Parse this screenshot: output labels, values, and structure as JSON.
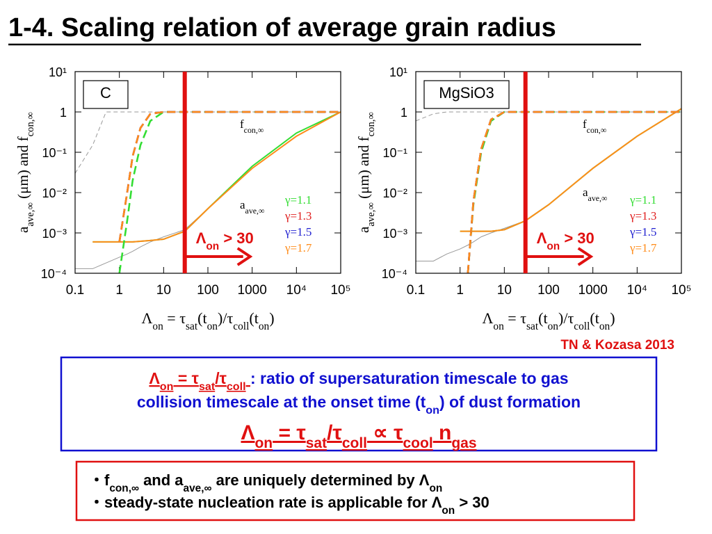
{
  "title": "1-4. Scaling relation of average grain radius",
  "citation": "TN & Kozasa 2013",
  "definition": {
    "formula": [
      "Λ",
      "on",
      " = τ",
      "sat",
      "/τ",
      "coll",
      " "
    ],
    "text": [
      " : ratio of supersaturation timescale to gas"
    ],
    "line2": [
      "collision timescale at the onset time (t",
      "on",
      ") of dust formation"
    ],
    "relation": [
      "Λ",
      "on",
      " = τ",
      "sat",
      "/τ",
      "coll",
      " ∝ τ",
      "cool",
      " n",
      "gas"
    ]
  },
  "notes": [
    [
      "・f",
      "con,∞",
      " and a",
      "ave,∞",
      " are uniquely determined by Λ",
      "on"
    ],
    [
      "・steady-state nucleation rate is applicable for Λ",
      "on",
      " > 30"
    ]
  ],
  "chart_data": [
    {
      "type": "line",
      "log_x": true,
      "log_y": true,
      "label": "C",
      "ylabel": [
        "a",
        "ave,∞",
        " (μm)  and  f",
        "con,∞"
      ],
      "xlabel": [
        "Λ",
        "on",
        "  =  τ",
        "sat",
        "(t",
        "on",
        ")/τ",
        "coll",
        "(t",
        "on",
        ")"
      ],
      "xlim": [
        0.1,
        100000
      ],
      "ylim": [
        0.0001,
        10
      ],
      "xticks": [
        0.1,
        1,
        10,
        100,
        1000,
        {
          "value": 10000,
          "label": "10⁴"
        },
        {
          "value": 100000,
          "label": "10⁵"
        }
      ],
      "yticks": [
        {
          "value": 0.0001,
          "label": "10⁻⁴"
        },
        {
          "value": 0.001,
          "label": "10⁻³"
        },
        {
          "value": 0.01,
          "label": "10⁻²"
        },
        {
          "value": 0.1,
          "label": "10⁻¹"
        },
        1,
        {
          "value": 10,
          "label": "10¹"
        }
      ],
      "x": [
        0.1,
        0.25,
        0.5,
        1,
        1.5,
        2,
        3,
        5,
        10,
        30,
        100,
        1000,
        10000,
        100000
      ],
      "series": [
        {
          "color": "#999999",
          "dash": true,
          "values": [
            0.03,
            0.15,
            1,
            1,
            1,
            1,
            1,
            1,
            1,
            1,
            1,
            1,
            1,
            1
          ]
        },
        {
          "color": "#999999",
          "values": [
            0.00013,
            0.00013,
            0.00018,
            0.00025,
            0.0003,
            0.00035,
            0.00045,
            0.0006,
            0.0008,
            0.0012,
            0.004,
            0.04,
            0.25,
            1
          ]
        },
        {
          "color": "#33dd33",
          "values": [
            null,
            0.0006,
            0.0006,
            0.0006,
            0.0006,
            0.0006,
            0.00062,
            0.00065,
            0.0007,
            0.0011,
            0.004,
            0.045,
            0.3,
            1
          ]
        },
        {
          "color": "#ff8c1a",
          "values": [
            null,
            0.0006,
            0.0006,
            0.0006,
            0.0006,
            0.0006,
            0.00062,
            0.00065,
            0.0007,
            0.0011,
            0.004,
            0.04,
            0.25,
            1
          ]
        },
        {
          "name": "γ=1.1",
          "color": "#33dd33",
          "dash": true,
          "values": [
            null,
            null,
            null,
            0.0001,
            0.002,
            0.02,
            0.15,
            0.6,
            1,
            1,
            1,
            1,
            1,
            1
          ]
        },
        {
          "name": "γ=1.3",
          "color": "#e02020",
          "dash": true,
          "values": [
            null,
            null,
            null,
            0.0006,
            0.01,
            0.08,
            0.4,
            0.9,
            1,
            1,
            1,
            1,
            1,
            1
          ]
        },
        {
          "name": "γ=1.5",
          "color": "#2020d0",
          "dash": true,
          "values": [
            null,
            null,
            null,
            0.0006,
            0.01,
            0.08,
            0.4,
            0.9,
            1,
            1,
            1,
            1,
            1,
            1
          ]
        },
        {
          "name": "γ=1.7",
          "color": "#ff8c1a",
          "dash": true,
          "values": [
            null,
            null,
            null,
            0.0006,
            0.01,
            0.08,
            0.4,
            0.9,
            1,
            1,
            1,
            1,
            1,
            1
          ]
        }
      ],
      "annotations": {
        "fcon": [
          "f",
          "con,∞"
        ],
        "aave": [
          "a",
          "ave,∞"
        ]
      },
      "threshold": {
        "x": 30,
        "text": [
          "Λ",
          "on",
          " > 30"
        ]
      }
    },
    {
      "type": "line",
      "log_x": true,
      "log_y": true,
      "label": "MgSiO3",
      "ylabel": [
        "a",
        "ave,∞",
        " (μm)  and  f",
        "con,∞"
      ],
      "xlabel": [
        "Λ",
        "on",
        "  =  τ",
        "sat",
        "(t",
        "on",
        ")/τ",
        "coll",
        "(t",
        "on",
        ")"
      ],
      "xlim": [
        0.1,
        100000
      ],
      "ylim": [
        0.0001,
        10
      ],
      "xticks": [
        0.1,
        1,
        10,
        100,
        1000,
        {
          "value": 10000,
          "label": "10⁴"
        },
        {
          "value": 100000,
          "label": "10⁵"
        }
      ],
      "yticks": [
        {
          "value": 0.0001,
          "label": "10⁻⁴"
        },
        {
          "value": 0.001,
          "label": "10⁻³"
        },
        {
          "value": 0.01,
          "label": "10⁻²"
        },
        {
          "value": 0.1,
          "label": "10⁻¹"
        },
        1,
        {
          "value": 10,
          "label": "10¹"
        }
      ],
      "x": [
        0.1,
        0.25,
        0.5,
        1,
        1.5,
        2,
        3,
        5,
        10,
        30,
        100,
        1000,
        10000,
        100000
      ],
      "series": [
        {
          "color": "#999999",
          "dash": true,
          "values": [
            0.6,
            0.9,
            1,
            1,
            1,
            1,
            1,
            1,
            1,
            1,
            1,
            1,
            1,
            1
          ]
        },
        {
          "color": "#999999",
          "values": [
            0.0002,
            0.0002,
            0.0003,
            0.0004,
            0.0005,
            0.0006,
            0.0008,
            0.001,
            0.0013,
            0.002,
            0.005,
            0.04,
            0.25,
            1.2
          ]
        },
        {
          "color": "#33dd33",
          "values": [
            null,
            null,
            null,
            0.0011,
            0.0011,
            0.0011,
            0.0011,
            0.0011,
            0.0012,
            0.002,
            0.005,
            0.04,
            0.25,
            1.2
          ]
        },
        {
          "color": "#ff8c1a",
          "values": [
            null,
            null,
            null,
            0.0011,
            0.0011,
            0.0011,
            0.0011,
            0.0011,
            0.0012,
            0.002,
            0.005,
            0.04,
            0.25,
            1.2
          ]
        },
        {
          "name": "γ=1.1",
          "color": "#33dd33",
          "dash": true,
          "values": [
            null,
            null,
            null,
            null,
            0.0001,
            0.005,
            0.1,
            0.6,
            1,
            1,
            1,
            1,
            1,
            1
          ]
        },
        {
          "name": "γ=1.3",
          "color": "#e02020",
          "dash": true,
          "values": [
            null,
            null,
            null,
            null,
            0.0001,
            0.006,
            0.12,
            0.65,
            1,
            1,
            1,
            1,
            1,
            1
          ]
        },
        {
          "name": "γ=1.5",
          "color": "#2020d0",
          "dash": true,
          "values": [
            null,
            null,
            null,
            null,
            0.0001,
            0.006,
            0.12,
            0.65,
            1,
            1,
            1,
            1,
            1,
            1
          ]
        },
        {
          "name": "γ=1.7",
          "color": "#ff8c1a",
          "dash": true,
          "values": [
            null,
            null,
            null,
            null,
            0.0001,
            0.006,
            0.12,
            0.65,
            1,
            1,
            1,
            1,
            1,
            1
          ]
        }
      ],
      "annotations": {
        "fcon": [
          "f",
          "con,∞"
        ],
        "aave": [
          "a",
          "ave,∞"
        ]
      },
      "threshold": {
        "x": 30,
        "text": [
          "Λ",
          "on",
          " > 30"
        ]
      }
    }
  ]
}
